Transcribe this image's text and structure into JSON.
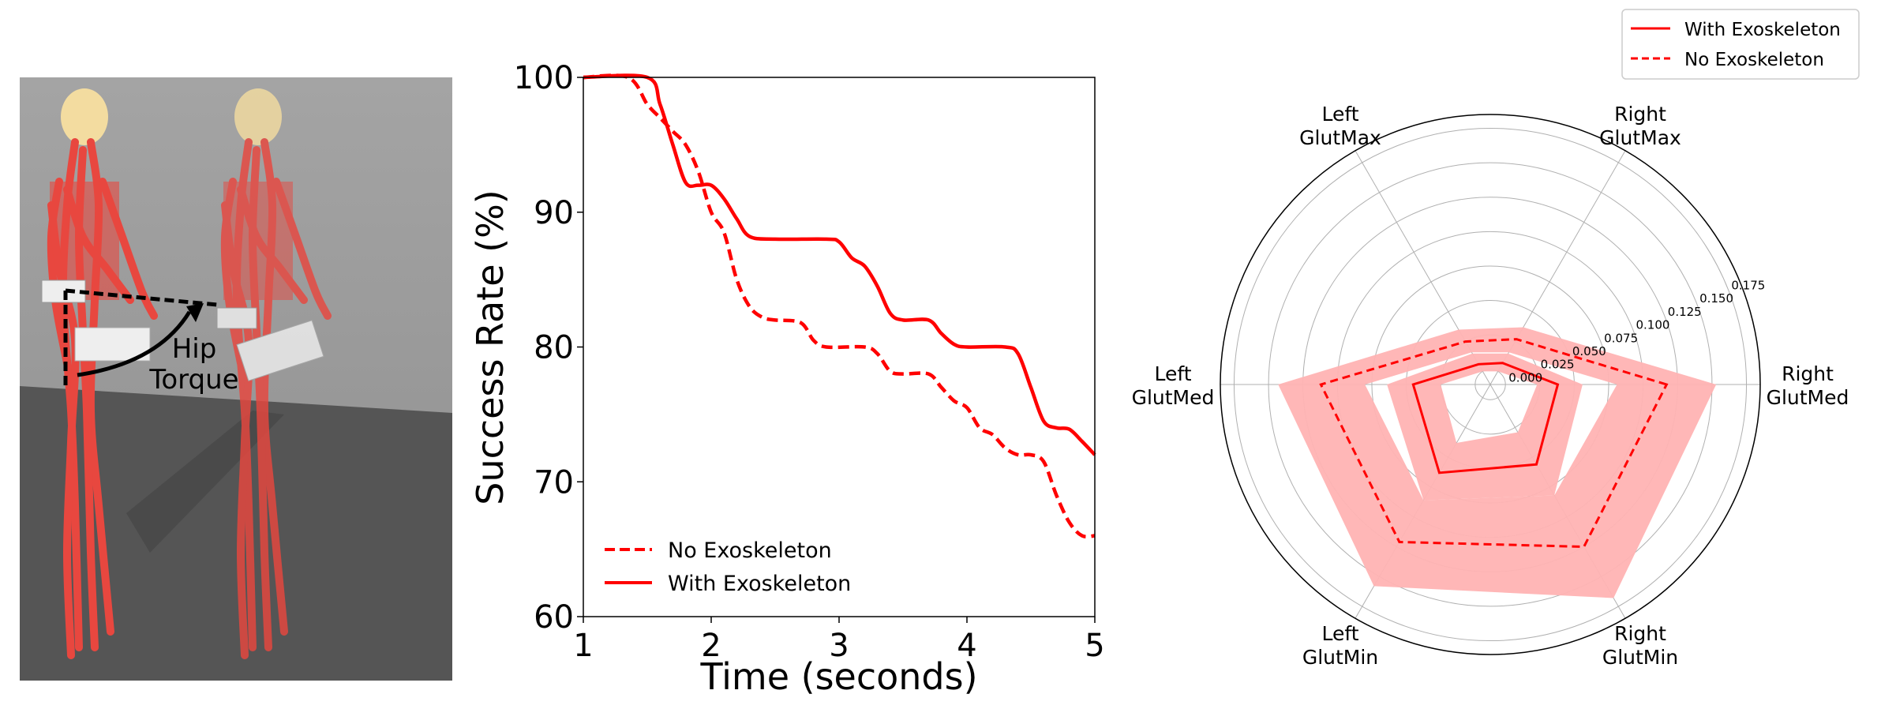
{
  "illustration": {
    "annotation_lines": [
      "Hip",
      "Torque"
    ],
    "colors": {
      "background": "#9a9a9a",
      "floor": "#555555",
      "muscle": "#e8473f",
      "bone": "#f3dca0",
      "exoskeleton": "#eeeeee"
    }
  },
  "chart_data": [
    {
      "type": "line",
      "xlabel": "Time (seconds)",
      "ylabel": "Success Rate (%)",
      "xlim": [
        1,
        5
      ],
      "ylim": [
        60,
        100
      ],
      "xticks": [
        "1",
        "2",
        "3",
        "4",
        "5"
      ],
      "yticks": [
        "60",
        "70",
        "80",
        "90",
        "100"
      ],
      "grid": false,
      "legend_position": "lower-left",
      "series": [
        {
          "name": "No Exoskeleton",
          "style": "dashed",
          "color": "#ff0000",
          "x": [
            1,
            1.35,
            1.5,
            1.6,
            1.7,
            1.8,
            1.9,
            2.0,
            2.1,
            2.2,
            2.3,
            2.4,
            2.5,
            2.7,
            2.8,
            2.9,
            3.2,
            3.3,
            3.4,
            3.5,
            3.7,
            3.8,
            3.9,
            4.0,
            4.1,
            4.2,
            4.3,
            4.4,
            4.5,
            4.6,
            4.7,
            4.8,
            4.9,
            5.0
          ],
          "y": [
            100,
            100,
            98,
            97,
            96,
            95,
            93,
            90,
            88.5,
            85,
            83,
            82.2,
            82,
            81.8,
            80.5,
            80,
            80,
            79.5,
            78.2,
            78,
            78,
            77,
            76,
            75.5,
            74,
            73.5,
            72.5,
            72,
            72,
            71.5,
            69,
            67,
            66,
            66
          ]
        },
        {
          "name": "With Exoskeleton",
          "style": "solid",
          "color": "#ff0000",
          "x": [
            1,
            1.5,
            1.6,
            1.7,
            1.8,
            1.9,
            2.0,
            2.1,
            2.2,
            2.3,
            2.5,
            2.9,
            3.0,
            3.1,
            3.2,
            3.3,
            3.4,
            3.5,
            3.7,
            3.8,
            3.9,
            4.0,
            4.3,
            4.4,
            4.5,
            4.6,
            4.7,
            4.8,
            4.9,
            5.0
          ],
          "y": [
            100,
            100,
            98,
            95,
            92.2,
            92,
            92,
            91,
            89.5,
            88.2,
            88,
            88,
            87.8,
            86.6,
            86,
            84.5,
            82.5,
            82,
            82,
            81,
            80.2,
            80,
            80,
            79.5,
            77,
            74.5,
            74,
            73.9,
            73,
            72
          ]
        }
      ]
    },
    {
      "type": "radar",
      "categories": [
        [
          "Right",
          "GlutMed"
        ],
        [
          "Right",
          "GlutMax"
        ],
        [
          "Left",
          "GlutMax"
        ],
        [
          "Left",
          "GlutMed"
        ],
        [
          "Left",
          "GlutMin"
        ],
        [
          "Right",
          "GlutMin"
        ]
      ],
      "radial_ticks": [
        "0.000",
        "0.025",
        "0.050",
        "0.075",
        "0.100",
        "0.125",
        "0.150",
        "0.175"
      ],
      "rlim": [
        -0.011,
        0.185
      ],
      "grid": true,
      "legend_position": "top-right",
      "series": [
        {
          "name": "With Exoskeleton",
          "style": "solid",
          "color": "#ff0000",
          "values": [
            0.038,
            0.007,
            0.006,
            0.045,
            0.063,
            0.056
          ],
          "lower": [
            0.023,
            0.0,
            0.0,
            0.025,
            0.038,
            0.029
          ],
          "upper": [
            0.056,
            0.015,
            0.015,
            0.064,
            0.086,
            0.082
          ]
        },
        {
          "name": "No Exoskeleton",
          "style": "dashed",
          "color": "#ff0000",
          "values": [
            0.117,
            0.027,
            0.025,
            0.112,
            0.121,
            0.125
          ],
          "lower": [
            0.081,
            0.016,
            0.016,
            0.08,
            0.086,
            0.082
          ],
          "upper": [
            0.153,
            0.037,
            0.035,
            0.143,
            0.158,
            0.168
          ]
        }
      ],
      "band_color": "#ffb3b3"
    }
  ]
}
